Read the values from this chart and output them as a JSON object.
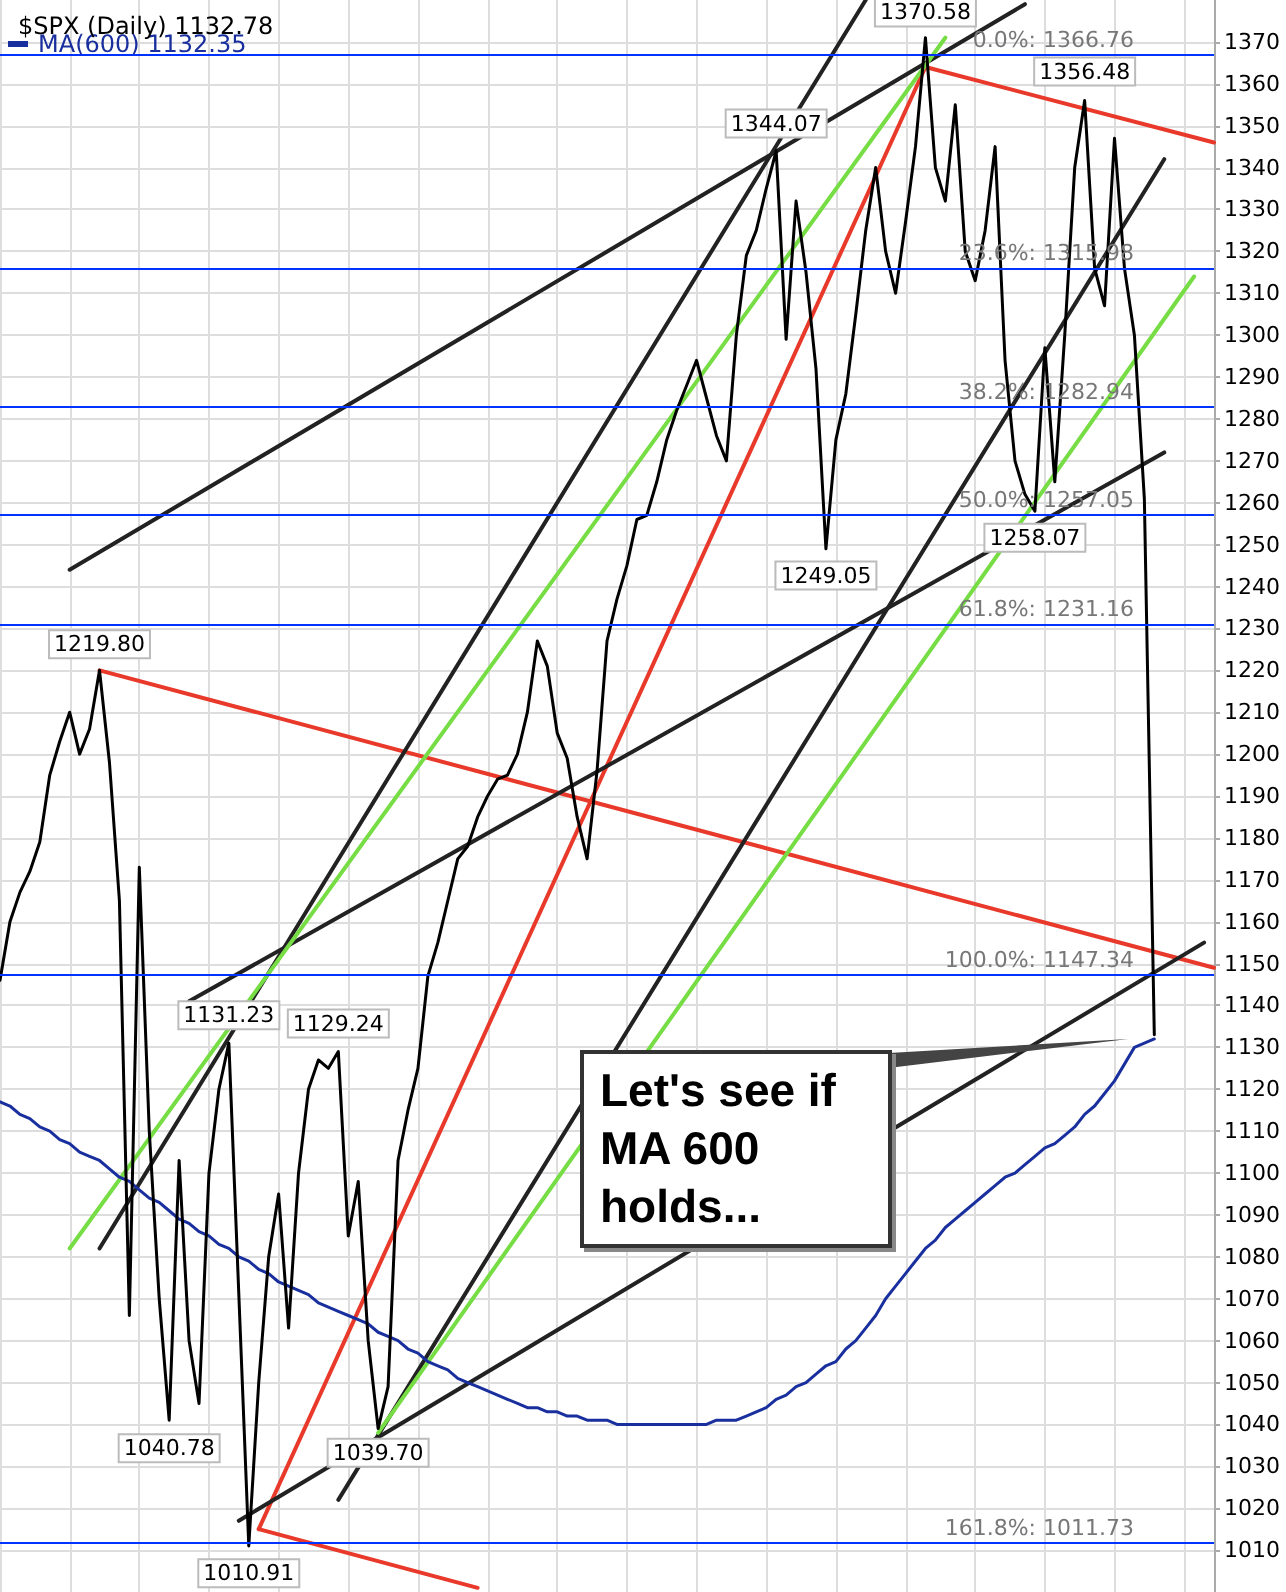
{
  "chart_data": {
    "type": "line",
    "title": "$SPX (Daily) 1132.78",
    "categories": [
      null,
      null,
      null,
      null,
      null,
      null,
      null,
      null,
      null,
      null,
      null,
      null,
      null,
      null,
      null,
      null,
      null,
      null,
      null,
      null,
      null,
      null,
      null,
      null,
      null,
      null,
      null,
      null,
      null,
      null,
      null,
      null,
      null,
      null,
      null,
      null,
      null,
      null,
      null,
      null,
      null,
      null,
      null,
      null,
      null,
      null,
      null,
      null,
      null,
      null,
      null,
      null,
      null,
      null,
      null,
      null,
      null,
      null,
      null,
      null,
      null,
      null,
      null,
      null,
      null,
      null,
      null,
      null,
      null,
      null,
      null,
      null,
      null,
      null,
      null,
      null,
      null,
      null,
      null,
      null,
      null,
      null,
      null,
      null,
      null,
      null,
      null,
      null,
      null,
      null,
      null,
      null,
      null,
      null,
      null,
      null,
      null,
      null,
      null,
      null,
      null,
      null,
      null,
      null,
      null,
      null,
      null,
      null,
      null,
      null,
      null,
      null,
      null,
      null,
      null,
      null,
      null,
      null,
      null,
      null,
      null,
      null,
      null
    ],
    "series": [
      {
        "color": "#000000",
        "values": [
          1146,
          1160,
          1167,
          1172,
          1179,
          1195,
          1203,
          1210,
          1200,
          1206,
          1220,
          1198,
          1165,
          1066,
          1173,
          1110,
          1070,
          1041,
          1103,
          1060,
          1045,
          1100,
          1120,
          1131,
          1071,
          1011,
          1050,
          1080,
          1095,
          1063,
          1100,
          1120,
          1127,
          1125,
          1129,
          1085,
          1098,
          1060,
          1039,
          1049,
          1103,
          1115,
          1125,
          1147,
          1155,
          1165,
          1175,
          1178,
          1185,
          1190,
          1194,
          1195,
          1200,
          1210,
          1227,
          1221,
          1205,
          1199,
          1185,
          1175,
          1196,
          1227,
          1237,
          1245,
          1256,
          1257,
          1265,
          1275,
          1282,
          1288,
          1294,
          1285,
          1276,
          1270,
          1300,
          1319,
          1325,
          1335,
          1344,
          1299,
          1332,
          1315,
          1292,
          1249,
          1275,
          1286,
          1305,
          1325,
          1340,
          1320,
          1310,
          1327,
          1345,
          1371,
          1340,
          1332,
          1355,
          1320,
          1313,
          1325,
          1345,
          1294,
          1270,
          1262,
          1258,
          1297,
          1265,
          1300,
          1340,
          1356,
          1316,
          1307,
          1347,
          1316,
          1300,
          1261,
          1133,
          null,
          null,
          null,
          null,
          null,
          null
        ]
      },
      {
        "name": "MA(600) 1132.35",
        "color": "#1a2f9e",
        "values": [
          1117,
          1116,
          1114,
          1113,
          1111,
          1110,
          1108,
          1107,
          1105,
          1104,
          1103,
          1101,
          1099,
          1098,
          1096,
          1094,
          1093,
          1091,
          1089,
          1088,
          1086,
          1085,
          1083,
          1082,
          1080,
          1079,
          1077,
          1076,
          1074,
          1073,
          1072,
          1071,
          1069,
          1068,
          1067,
          1066,
          1065,
          1064,
          1062,
          1061,
          1060,
          1058,
          1057,
          1055,
          1054,
          1053,
          1051,
          1050,
          1049,
          1048,
          1047,
          1046,
          1045,
          1044,
          1044,
          1043,
          1043,
          1042,
          1042,
          1041,
          1041,
          1041,
          1040,
          1040,
          1040,
          1040,
          1040,
          1040,
          1040,
          1040,
          1040,
          1040,
          1041,
          1041,
          1041,
          1042,
          1043,
          1044,
          1046,
          1047,
          1049,
          1050,
          1052,
          1054,
          1055,
          1058,
          1060,
          1063,
          1066,
          1070,
          1073,
          1076,
          1079,
          1082,
          1084,
          1087,
          1089,
          1091,
          1093,
          1095,
          1097,
          1099,
          1100,
          1102,
          1104,
          1106,
          1107,
          1109,
          1111,
          1114,
          1116,
          1119,
          1122,
          1126,
          1130,
          1131,
          1132,
          null,
          null,
          null,
          null,
          null,
          null
        ]
      },
      {
        "color": "#e8392a",
        "values": [
          null,
          null,
          null,
          null,
          null,
          null,
          null,
          null,
          null,
          null,
          null,
          null,
          null,
          null,
          null,
          null,
          null,
          null,
          null,
          null,
          null,
          null,
          null,
          null,
          null,
          null,
          1015,
          null,
          null,
          null,
          null,
          null,
          null,
          null,
          null,
          null,
          null,
          null,
          null,
          null,
          null,
          null,
          null,
          null,
          null,
          null,
          null,
          null,
          null,
          null,
          null,
          null,
          null,
          null,
          null,
          null,
          null,
          null,
          null,
          null,
          null,
          null,
          null,
          null,
          null,
          null,
          null,
          null,
          null,
          null,
          null,
          null,
          null,
          null,
          null,
          null,
          null,
          null,
          null,
          null,
          null,
          null,
          null,
          null,
          null,
          null,
          null,
          null,
          null,
          null,
          null,
          null,
          null,
          1364,
          null,
          null,
          null,
          null,
          null,
          null,
          null,
          null,
          null,
          null,
          null,
          null,
          null,
          null,
          null,
          null,
          null,
          null,
          null,
          null,
          null,
          null,
          null,
          null,
          null,
          null,
          null,
          null,
          null
        ]
      },
      {
        "color": "#e8392a",
        "values": [
          null,
          null,
          null,
          null,
          null,
          null,
          null,
          null,
          null,
          null,
          1220,
          null,
          null,
          null,
          null,
          null,
          null,
          null,
          null,
          null,
          null,
          null,
          null,
          null,
          null,
          null,
          null,
          null,
          null,
          null,
          null,
          null,
          null,
          null,
          null,
          null,
          null,
          null,
          null,
          null,
          null,
          null,
          null,
          null,
          null,
          null,
          null,
          null,
          null,
          null,
          null,
          null,
          null,
          null,
          null,
          null,
          null,
          null,
          null,
          null,
          null,
          null,
          null,
          null,
          null,
          null,
          null,
          null,
          null,
          null,
          null,
          null,
          null,
          null,
          null,
          null,
          null,
          null,
          null,
          null,
          null,
          null,
          null,
          null,
          null,
          null,
          null,
          null,
          null,
          null,
          null,
          null,
          null,
          null,
          null,
          null,
          null,
          null,
          null,
          null,
          null,
          null,
          null,
          null,
          null,
          null,
          null,
          null,
          null,
          null,
          null,
          null,
          null,
          null,
          null,
          null,
          null,
          null,
          null,
          null,
          null,
          null,
          1149
        ]
      },
      {
        "color": "#e8392a",
        "values": [
          null,
          null,
          null,
          null,
          null,
          null,
          null,
          null,
          null,
          null,
          null,
          null,
          null,
          null,
          null,
          null,
          null,
          null,
          null,
          null,
          null,
          null,
          null,
          null,
          null,
          null,
          null,
          null,
          null,
          null,
          null,
          null,
          null,
          null,
          null,
          null,
          null,
          null,
          null,
          null,
          null,
          null,
          null,
          null,
          null,
          null,
          null,
          null,
          null,
          null,
          null,
          null,
          null,
          null,
          null,
          null,
          null,
          null,
          null,
          null,
          null,
          null,
          null,
          null,
          null,
          null,
          null,
          null,
          null,
          null,
          null,
          null,
          null,
          null,
          null,
          null,
          null,
          null,
          null,
          null,
          null,
          null,
          null,
          null,
          null,
          null,
          null,
          null,
          null,
          null,
          null,
          null,
          null,
          1364,
          null,
          null,
          null,
          null,
          null,
          null,
          null,
          null,
          null,
          null,
          null,
          null,
          null,
          null,
          null,
          null,
          null,
          null,
          null,
          null,
          null,
          null,
          null,
          null,
          null,
          null,
          null,
          null,
          1346
        ]
      },
      {
        "color": "#e8392a",
        "values": [
          null,
          null,
          null,
          null,
          null,
          null,
          null,
          null,
          null,
          null,
          null,
          null,
          null,
          null,
          null,
          null,
          null,
          null,
          null,
          null,
          null,
          null,
          null,
          null,
          null,
          null,
          1015,
          null,
          null,
          null,
          null,
          null,
          null,
          null,
          null,
          null,
          null,
          null,
          null,
          null,
          null,
          null,
          null,
          null,
          null,
          null,
          null,
          null,
          1001,
          null,
          null,
          null,
          null,
          null,
          null,
          null,
          null,
          null,
          null,
          null,
          null,
          null,
          null,
          null,
          null,
          null,
          null,
          null,
          null,
          null,
          null,
          null,
          null,
          null,
          null,
          null,
          null,
          null,
          null,
          null,
          null,
          null,
          null,
          null,
          null,
          null,
          null,
          null,
          null,
          null,
          null,
          null,
          null,
          null,
          null,
          null,
          null,
          null,
          null,
          null,
          null,
          null,
          null,
          null,
          null,
          null,
          null,
          null,
          null,
          null,
          null,
          null,
          null,
          null,
          null,
          null,
          null,
          null,
          null,
          null,
          null,
          null,
          null
        ]
      },
      {
        "color": "#222222",
        "values": [
          null,
          null,
          null,
          null,
          null,
          null,
          null,
          1244,
          null,
          null,
          null,
          null,
          null,
          null,
          null,
          null,
          null,
          null,
          null,
          null,
          null,
          null,
          null,
          null,
          null,
          null,
          null,
          null,
          null,
          null,
          null,
          null,
          null,
          null,
          null,
          null,
          null,
          null,
          null,
          null,
          null,
          null,
          null,
          null,
          null,
          null,
          null,
          null,
          null,
          null,
          null,
          null,
          null,
          null,
          null,
          null,
          null,
          null,
          null,
          null,
          null,
          null,
          null,
          null,
          null,
          null,
          null,
          null,
          null,
          null,
          null,
          null,
          null,
          null,
          null,
          null,
          null,
          null,
          null,
          null,
          null,
          null,
          null,
          null,
          null,
          null,
          null,
          null,
          null,
          null,
          null,
          null,
          null,
          null,
          null,
          null,
          null,
          null,
          null,
          null,
          null,
          null,
          null,
          1379,
          null,
          null,
          null,
          null,
          null,
          null,
          null,
          null,
          null,
          null,
          null,
          null,
          null,
          null,
          null,
          null,
          null,
          null,
          null
        ]
      },
      {
        "color": "#222222",
        "values": [
          null,
          null,
          null,
          null,
          null,
          null,
          null,
          null,
          null,
          null,
          1082,
          null,
          null,
          null,
          null,
          null,
          null,
          null,
          null,
          null,
          null,
          null,
          null,
          null,
          null,
          null,
          null,
          null,
          null,
          null,
          null,
          null,
          null,
          null,
          null,
          null,
          null,
          null,
          null,
          null,
          null,
          null,
          null,
          null,
          null,
          null,
          null,
          null,
          null,
          null,
          null,
          null,
          null,
          null,
          null,
          null,
          null,
          null,
          null,
          null,
          null,
          null,
          null,
          null,
          null,
          null,
          null,
          null,
          null,
          null,
          null,
          null,
          null,
          null,
          null,
          null,
          null,
          null,
          null,
          null,
          null,
          null,
          null,
          null,
          null,
          null,
          null,
          1380,
          null,
          null,
          null,
          null,
          null,
          null,
          null,
          null,
          null,
          null,
          null,
          null,
          null,
          null,
          null,
          null,
          null,
          null,
          null,
          null,
          null,
          null,
          null,
          null,
          null,
          null,
          null,
          null,
          null,
          null,
          null,
          null,
          null,
          null,
          null
        ]
      },
      {
        "color": "#222222",
        "values": [
          null,
          null,
          null,
          null,
          null,
          null,
          null,
          null,
          null,
          null,
          null,
          null,
          null,
          null,
          null,
          null,
          null,
          null,
          null,
          null,
          null,
          null,
          null,
          null,
          1017,
          null,
          null,
          null,
          null,
          null,
          null,
          null,
          null,
          null,
          null,
          null,
          null,
          null,
          null,
          null,
          null,
          null,
          null,
          null,
          null,
          null,
          null,
          null,
          null,
          null,
          null,
          null,
          null,
          null,
          null,
          null,
          null,
          null,
          null,
          null,
          null,
          null,
          null,
          null,
          null,
          null,
          null,
          null,
          null,
          null,
          null,
          null,
          null,
          null,
          null,
          null,
          null,
          null,
          null,
          null,
          null,
          null,
          null,
          null,
          null,
          null,
          null,
          null,
          null,
          null,
          null,
          null,
          null,
          null,
          null,
          null,
          null,
          null,
          null,
          null,
          null,
          null,
          null,
          null,
          null,
          null,
          null,
          null,
          null,
          null,
          null,
          null,
          null,
          null,
          null,
          null,
          null,
          null,
          null,
          null,
          null,
          1155,
          null
        ]
      },
      {
        "color": "#222222",
        "values": [
          null,
          null,
          null,
          null,
          null,
          null,
          null,
          null,
          null,
          null,
          null,
          null,
          null,
          null,
          null,
          null,
          null,
          null,
          null,
          1141,
          null,
          null,
          null,
          null,
          null,
          null,
          null,
          null,
          null,
          null,
          null,
          null,
          null,
          null,
          null,
          null,
          null,
          null,
          null,
          null,
          null,
          null,
          null,
          null,
          null,
          null,
          null,
          null,
          null,
          null,
          null,
          null,
          null,
          null,
          null,
          null,
          null,
          null,
          null,
          null,
          null,
          null,
          null,
          null,
          null,
          null,
          null,
          null,
          null,
          null,
          null,
          null,
          null,
          null,
          null,
          null,
          null,
          null,
          null,
          null,
          null,
          null,
          null,
          null,
          null,
          null,
          null,
          null,
          null,
          null,
          null,
          null,
          null,
          null,
          null,
          null,
          null,
          null,
          null,
          null,
          null,
          null,
          null,
          null,
          null,
          null,
          null,
          null,
          null,
          null,
          null,
          null,
          null,
          null,
          null,
          null,
          null,
          1272,
          null,
          null,
          null,
          null,
          null
        ]
      },
      {
        "color": "#222222",
        "values": [
          null,
          null,
          null,
          null,
          null,
          null,
          null,
          null,
          null,
          null,
          null,
          null,
          null,
          null,
          null,
          null,
          null,
          null,
          null,
          null,
          null,
          null,
          null,
          null,
          null,
          null,
          null,
          null,
          null,
          null,
          null,
          null,
          null,
          null,
          1022,
          null,
          null,
          null,
          null,
          null,
          null,
          null,
          null,
          null,
          null,
          null,
          null,
          null,
          null,
          null,
          null,
          null,
          null,
          null,
          null,
          null,
          null,
          null,
          null,
          null,
          null,
          null,
          null,
          null,
          null,
          null,
          null,
          null,
          null,
          null,
          null,
          null,
          null,
          null,
          null,
          null,
          null,
          null,
          null,
          null,
          null,
          null,
          null,
          null,
          null,
          null,
          null,
          null,
          null,
          null,
          null,
          null,
          null,
          null,
          null,
          null,
          null,
          null,
          null,
          null,
          null,
          null,
          null,
          null,
          null,
          null,
          null,
          null,
          null,
          null,
          null,
          null,
          null,
          null,
          null,
          null,
          null,
          1342,
          null,
          null,
          null,
          null,
          null
        ]
      },
      {
        "color": "#77dd44",
        "values": [
          null,
          null,
          null,
          null,
          null,
          null,
          null,
          1082,
          null,
          null,
          null,
          null,
          null,
          null,
          null,
          null,
          null,
          null,
          null,
          null,
          null,
          null,
          null,
          null,
          null,
          null,
          null,
          null,
          null,
          null,
          null,
          null,
          null,
          null,
          null,
          null,
          null,
          null,
          null,
          null,
          null,
          null,
          null,
          null,
          null,
          null,
          null,
          null,
          null,
          null,
          null,
          null,
          null,
          null,
          null,
          null,
          null,
          null,
          null,
          null,
          null,
          null,
          null,
          null,
          null,
          null,
          null,
          null,
          null,
          null,
          null,
          null,
          null,
          null,
          null,
          null,
          null,
          null,
          null,
          null,
          null,
          null,
          null,
          null,
          null,
          null,
          null,
          null,
          null,
          null,
          null,
          null,
          null,
          null,
          null,
          1371,
          null,
          null,
          null,
          null,
          null,
          null,
          null,
          null,
          null,
          null,
          null,
          null,
          null,
          null,
          null,
          null,
          null,
          null,
          null,
          null,
          null,
          null,
          null,
          null,
          null,
          null,
          null
        ]
      },
      {
        "color": "#77dd44",
        "values": [
          null,
          null,
          null,
          null,
          null,
          null,
          null,
          null,
          null,
          null,
          null,
          null,
          null,
          null,
          null,
          null,
          null,
          null,
          null,
          null,
          null,
          null,
          null,
          null,
          null,
          null,
          null,
          null,
          null,
          null,
          null,
          null,
          null,
          null,
          null,
          null,
          null,
          null,
          1038,
          null,
          null,
          null,
          null,
          null,
          null,
          null,
          null,
          null,
          null,
          null,
          null,
          null,
          null,
          null,
          null,
          null,
          null,
          null,
          null,
          null,
          null,
          null,
          null,
          null,
          null,
          null,
          null,
          null,
          null,
          null,
          null,
          null,
          null,
          null,
          null,
          null,
          null,
          null,
          null,
          null,
          null,
          null,
          null,
          null,
          null,
          null,
          null,
          null,
          null,
          null,
          null,
          null,
          null,
          null,
          null,
          null,
          null,
          null,
          null,
          null,
          null,
          null,
          null,
          null,
          null,
          null,
          null,
          null,
          null,
          null,
          null,
          null,
          null,
          null,
          null,
          null,
          null,
          null,
          null,
          null,
          1314,
          null,
          null
        ]
      }
    ],
    "ylim": [
      1000,
      1380
    ],
    "yticks": [
      1010,
      1020,
      1030,
      1040,
      1050,
      1060,
      1070,
      1080,
      1090,
      1100,
      1110,
      1120,
      1130,
      1140,
      1150,
      1160,
      1170,
      1180,
      1190,
      1200,
      1210,
      1220,
      1230,
      1240,
      1250,
      1260,
      1270,
      1280,
      1290,
      1300,
      1310,
      1320,
      1330,
      1340,
      1350,
      1360,
      1370
    ],
    "ref_lines": [
      {
        "axis": "y",
        "value": 1366.76,
        "label": "0.0%: 1366.76",
        "color": "#0033ff"
      },
      {
        "axis": "y",
        "value": 1315.98,
        "label": "23.6%: 1315.98",
        "color": "#0033ff"
      },
      {
        "axis": "y",
        "value": 1282.94,
        "label": "38.2%: 1282.94",
        "color": "#0033ff"
      },
      {
        "axis": "y",
        "value": 1257.05,
        "label": "50.0%: 1257.05",
        "color": "#0033ff"
      },
      {
        "axis": "y",
        "value": 1231.16,
        "label": "61.8%: 1231.16",
        "color": "#0033ff"
      },
      {
        "axis": "y",
        "value": 1147.34,
        "label": "100.0%: 1147.34",
        "color": "#0033ff"
      },
      {
        "axis": "y",
        "value": 1011.73,
        "label": "161.8%: 1011.73",
        "color": "#0033ff"
      }
    ],
    "annotations": [
      {
        "text": "1370.58",
        "y": 1370.58
      },
      {
        "text": "1344.07",
        "y": 1344.07
      },
      {
        "text": "1356.48",
        "y": 1356.48
      },
      {
        "text": "1249.05",
        "y": 1249.05
      },
      {
        "text": "1258.07",
        "y": 1258.07
      },
      {
        "text": "1219.80",
        "y": 1219.8
      },
      {
        "text": "1131.23",
        "y": 1131.23
      },
      {
        "text": "1129.24",
        "y": 1129.24
      },
      {
        "text": "1040.78",
        "y": 1040.78
      },
      {
        "text": "1039.70",
        "y": 1039.7
      },
      {
        "text": "1010.91",
        "y": 1010.91
      },
      "Let's see if MA 600 holds..."
    ],
    "grid": true,
    "legend": "top left",
    "tick_labels": "y",
    "marker": "none",
    "line_style": "solid"
  }
}
